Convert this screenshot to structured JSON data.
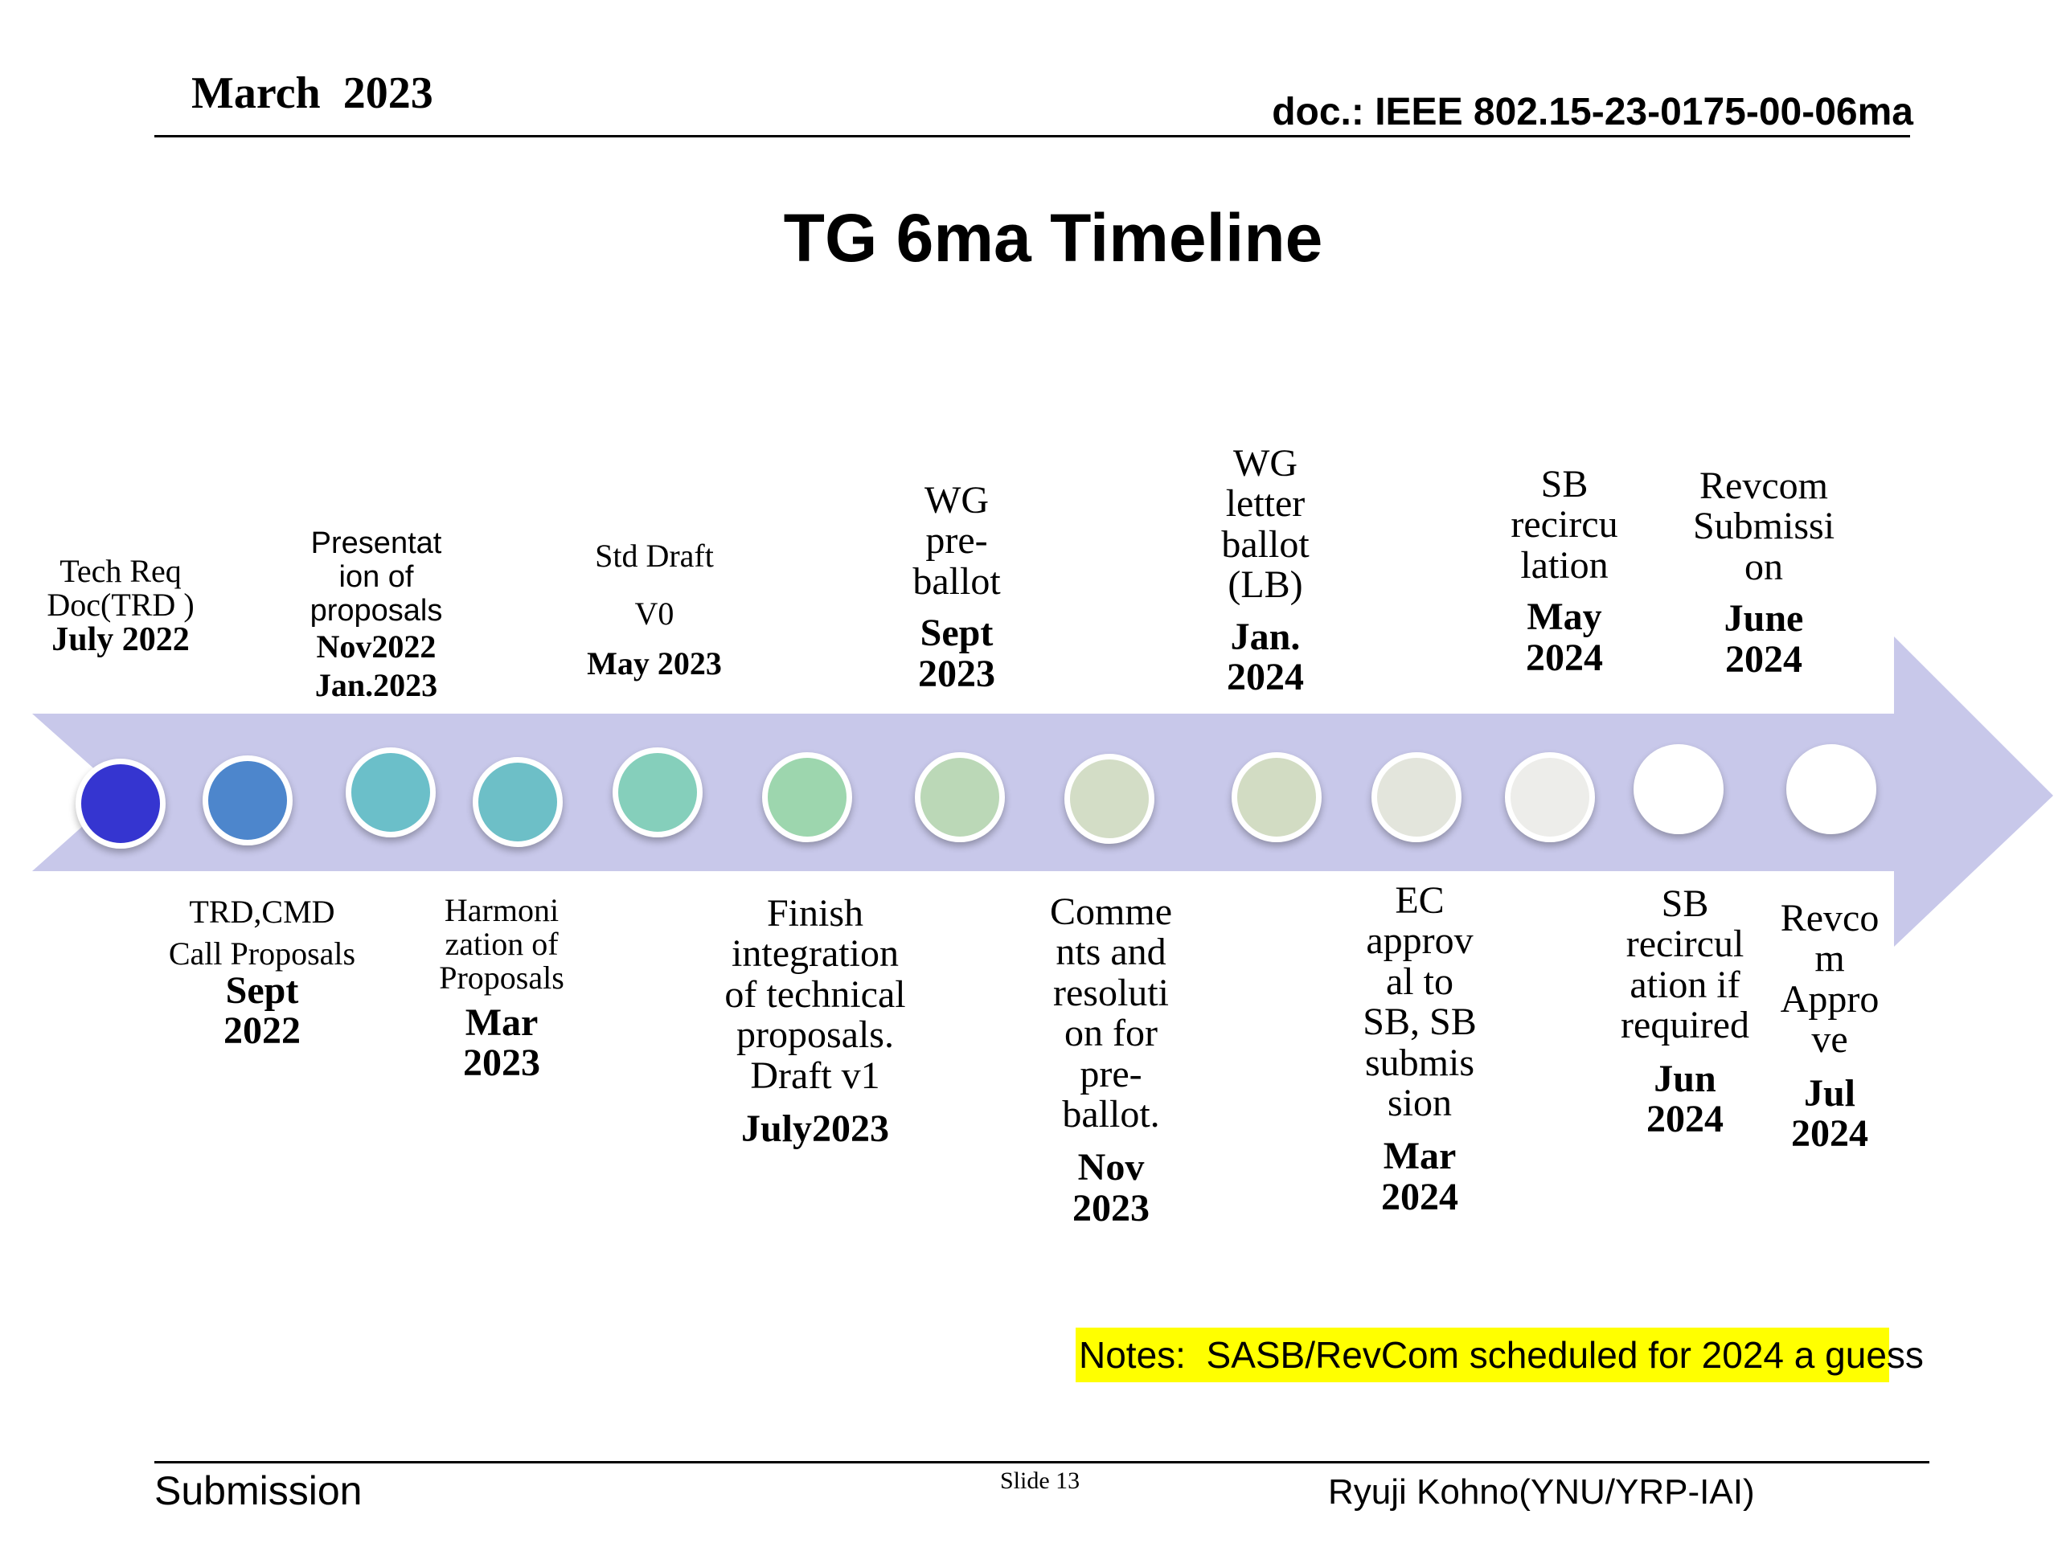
{
  "header": {
    "date": "March  2023",
    "doc_id": "doc.: IEEE 802.15-23-0175-00-06ma"
  },
  "title": "TG 6ma Timeline",
  "timeline": {
    "nodes": [
      {
        "color": "#3535d0"
      },
      {
        "color": "#4d86cc"
      },
      {
        "color": "#6bbfc9"
      },
      {
        "color": "#6dbfc7"
      },
      {
        "color": "#85cfbb"
      },
      {
        "color": "#9dd6ae"
      },
      {
        "color": "#bbd8b7"
      },
      {
        "color": "#d3ddc6"
      },
      {
        "color": "#d2dcc3"
      },
      {
        "color": "#e3e5dc"
      },
      {
        "color": "#ededea"
      },
      {
        "color": "#ffffff"
      },
      {
        "color": "#ffffff"
      }
    ],
    "top": [
      {
        "text": "Tech Req Doc(TRD )",
        "date": "July 2022"
      },
      {
        "text": "Presentat ion of proposals",
        "date": "Nov2022 Jan.2023"
      },
      {
        "text": "Std Draft",
        "text2": "V0",
        "date": "May 2023"
      },
      {
        "text": "WG pre- ballot",
        "date": "Sept 2023"
      },
      {
        "text": "WG letter ballot (LB)",
        "date": "Jan. 2024"
      },
      {
        "text": "SB recircu lation",
        "date": "May 2024"
      },
      {
        "text": "Revcom Submissi on",
        "date": "June 2024"
      }
    ],
    "bottom": [
      {
        "text": "TRD,CMD",
        "text2": "Call Proposals",
        "date": "Sept 2022"
      },
      {
        "text": "Harmoni zation of Proposals",
        "date": "Mar 2023"
      },
      {
        "text": "Finish integration of technical proposals. Draft v1",
        "date": "July2023"
      },
      {
        "text": "Comme nts and resoluti on for pre- ballot.",
        "date": "Nov 2023"
      },
      {
        "text": "EC approv al to SB, SB submis sion",
        "date": "Mar 2024"
      },
      {
        "text": "SB recircul ation if required",
        "date": "Jun 2024"
      },
      {
        "text": "Revco m Appro ve",
        "date": "Jul 2024"
      }
    ]
  },
  "notes": "Notes:  SASB/RevCom scheduled for 2024 a guess",
  "footer": {
    "left": "Submission",
    "center": "Slide 13",
    "right": "Ryuji Kohno(YNU/YRP-IAI)"
  },
  "colors": {
    "arrow": "#c8c8ea",
    "highlight": "#ffff00"
  }
}
